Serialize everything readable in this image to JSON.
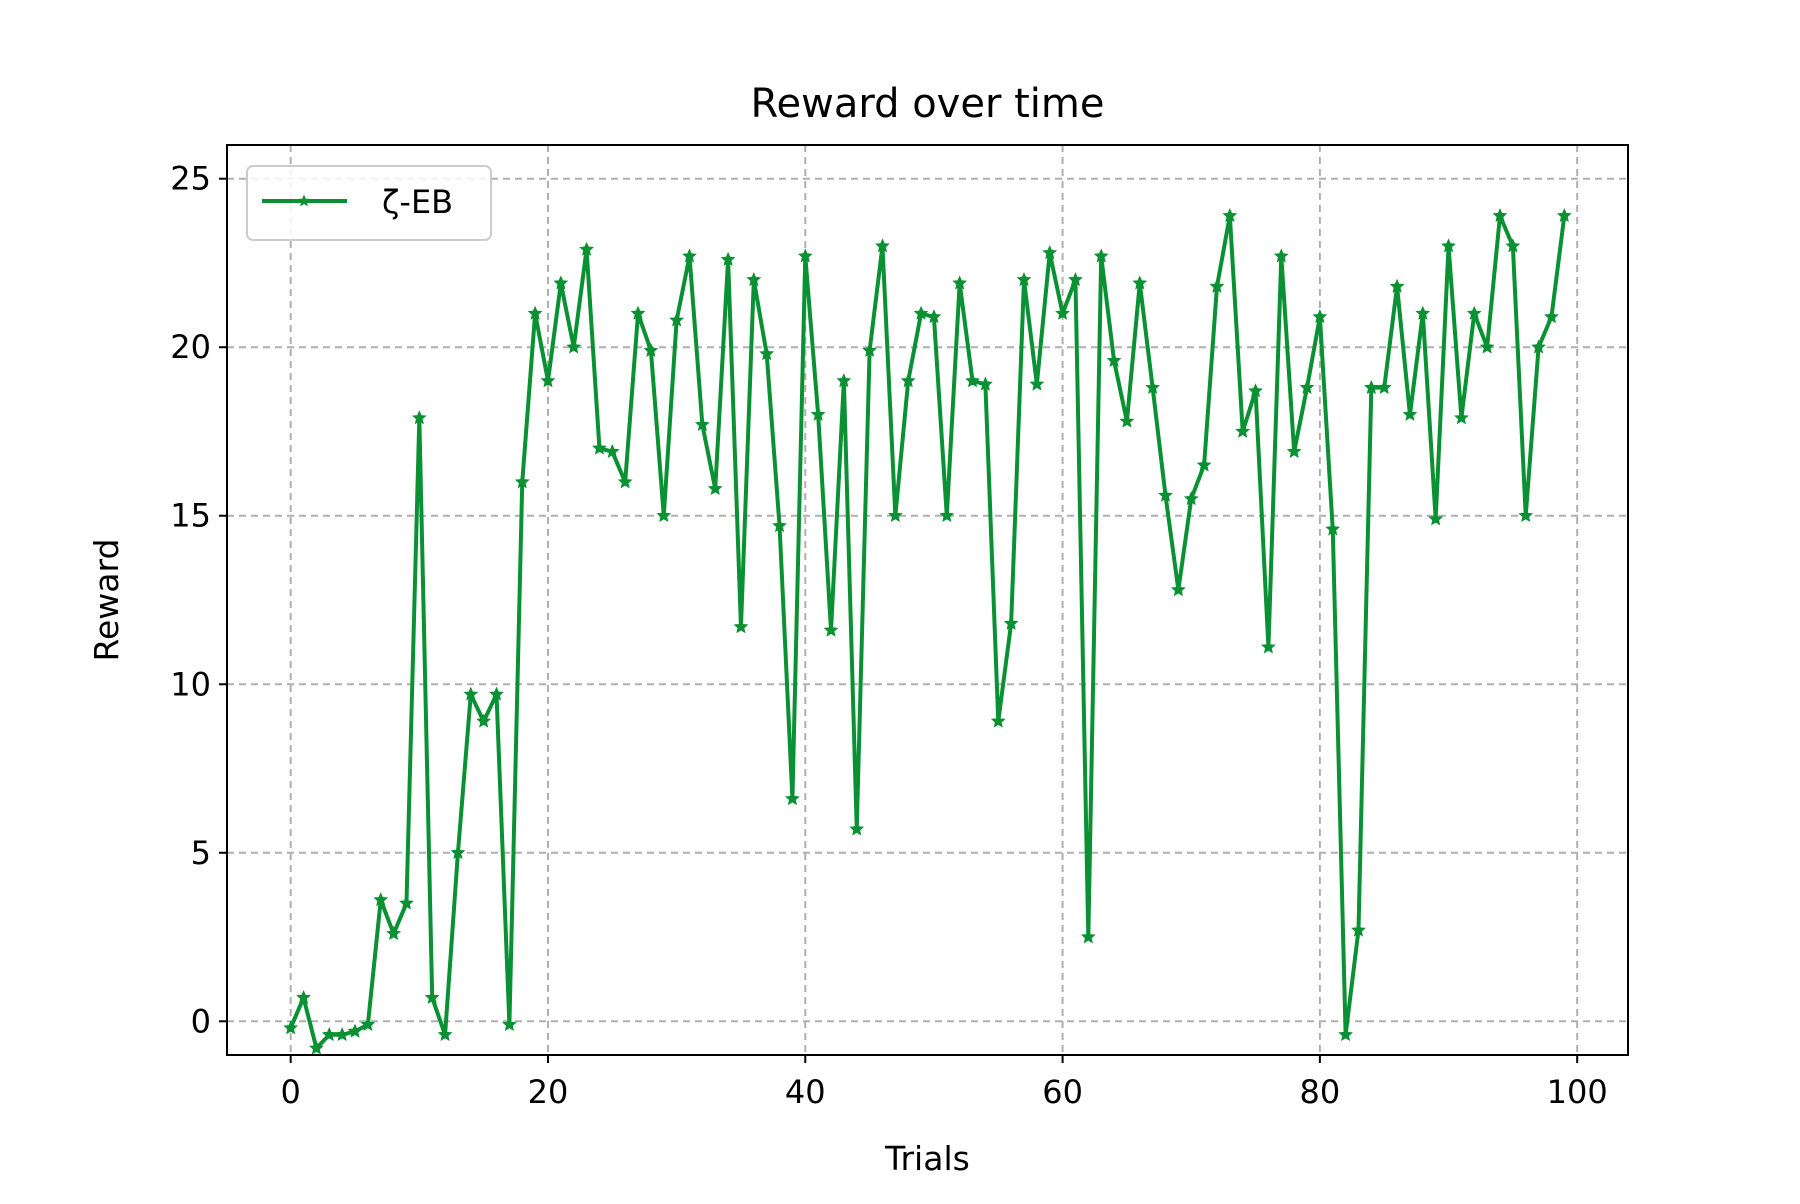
{
  "chart_data": {
    "type": "line",
    "title": "Reward over time",
    "xlabel": "Trials",
    "ylabel": "Reward",
    "xlim": [
      -4.95,
      103.95
    ],
    "ylim": [
      -1.0,
      26.0
    ],
    "xticks": [
      0,
      20,
      40,
      60,
      80,
      100
    ],
    "yticks": [
      0,
      5,
      10,
      15,
      20,
      25
    ],
    "grid": true,
    "legend_position": "top-left",
    "series": [
      {
        "name": "ζ-EB",
        "color": "#0a9133",
        "marker": "star",
        "x": [
          0,
          1,
          2,
          3,
          4,
          5,
          6,
          7,
          8,
          9,
          10,
          11,
          12,
          13,
          14,
          15,
          16,
          17,
          18,
          19,
          20,
          21,
          22,
          23,
          24,
          25,
          26,
          27,
          28,
          29,
          30,
          31,
          32,
          33,
          34,
          35,
          36,
          37,
          38,
          39,
          40,
          41,
          42,
          43,
          44,
          45,
          46,
          47,
          48,
          49,
          50,
          51,
          52,
          53,
          54,
          55,
          56,
          57,
          58,
          59,
          60,
          61,
          62,
          63,
          64,
          65,
          66,
          67,
          68,
          69,
          70,
          71,
          72,
          73,
          74,
          75,
          76,
          77,
          78,
          79,
          80,
          81,
          82,
          83,
          84,
          85,
          86,
          87,
          88,
          89,
          90,
          91,
          92,
          93,
          94,
          95,
          96,
          97,
          98,
          99
        ],
        "y": [
          -0.2,
          0.7,
          -0.8,
          -0.4,
          -0.4,
          -0.3,
          -0.1,
          3.6,
          2.6,
          3.5,
          17.9,
          0.7,
          -0.4,
          5.0,
          9.7,
          8.9,
          9.7,
          -0.1,
          16.0,
          21.0,
          19.0,
          21.9,
          20.0,
          22.9,
          17.0,
          16.9,
          16.0,
          21.0,
          19.9,
          15.0,
          20.8,
          22.7,
          17.7,
          15.8,
          22.6,
          11.7,
          22.0,
          19.8,
          14.7,
          6.6,
          22.7,
          18.0,
          11.6,
          19.0,
          5.7,
          19.9,
          23.0,
          15.0,
          19.0,
          21.0,
          20.9,
          15.0,
          21.9,
          19.0,
          18.9,
          8.9,
          11.8,
          22.0,
          18.9,
          22.8,
          21.0,
          22.0,
          2.5,
          22.7,
          19.6,
          17.8,
          21.9,
          18.8,
          15.6,
          12.8,
          15.5,
          16.5,
          21.8,
          23.9,
          17.5,
          18.7,
          11.1,
          22.7,
          16.9,
          18.8,
          20.9,
          14.6,
          -0.4,
          2.7,
          18.8,
          18.8,
          21.8,
          18.0,
          21.0,
          14.9,
          23.0,
          17.9,
          21.0,
          20.0,
          23.9,
          23.0,
          15.0,
          20.0,
          20.9,
          23.9
        ]
      }
    ]
  }
}
